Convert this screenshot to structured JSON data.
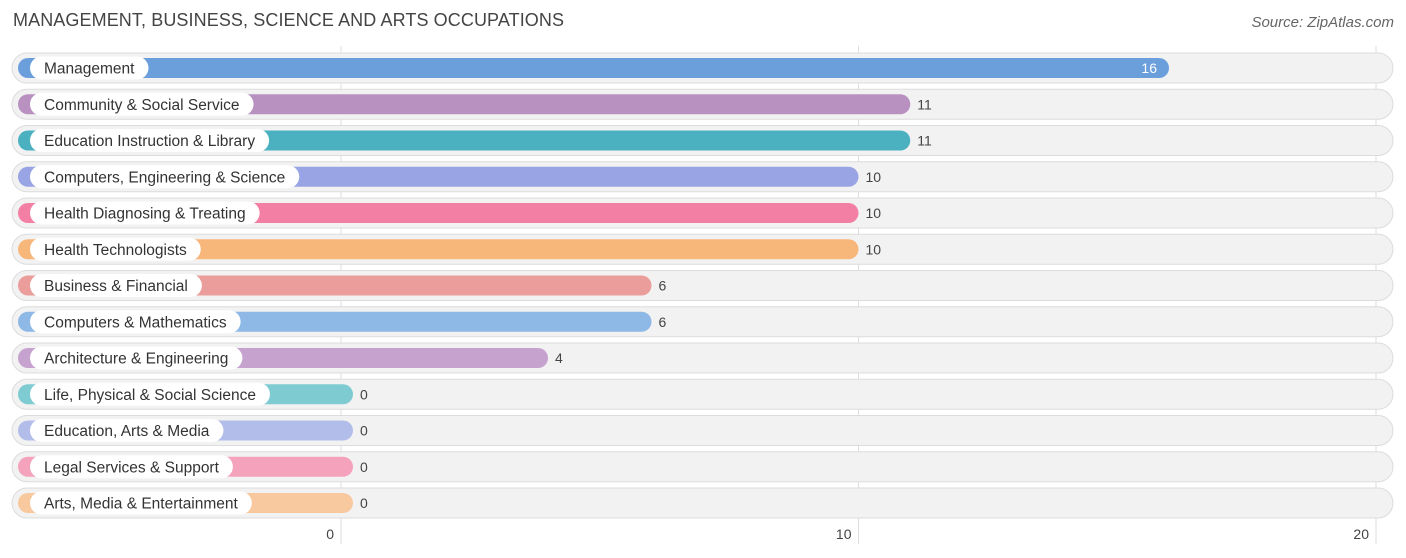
{
  "header": {
    "title": "MANAGEMENT, BUSINESS, SCIENCE AND ARTS OCCUPATIONS",
    "source": "Source: ZipAtlas.com"
  },
  "chart_data": {
    "type": "bar",
    "orientation": "horizontal",
    "title": "MANAGEMENT, BUSINESS, SCIENCE AND ARTS OCCUPATIONS",
    "categories": [
      "Management",
      "Community & Social Service",
      "Education Instruction & Library",
      "Computers, Engineering & Science",
      "Health Diagnosing & Treating",
      "Health Technologists",
      "Business & Financial",
      "Computers & Mathematics",
      "Architecture & Engineering",
      "Life, Physical & Social Science",
      "Education, Arts & Media",
      "Legal Services & Support",
      "Arts, Media & Entertainment"
    ],
    "values": [
      16,
      11,
      11,
      10,
      10,
      10,
      6,
      6,
      4,
      0,
      0,
      0,
      0
    ],
    "colors": [
      "#6a9fdc",
      "#b891c1",
      "#4bb1c1",
      "#98a4e4",
      "#f37fa4",
      "#f8b77a",
      "#eb9d9b",
      "#8eb8e6",
      "#c5a3ce",
      "#7fcbd2",
      "#b3bdea",
      "#f5a2bd",
      "#f8c99f"
    ],
    "xlim": [
      0,
      20
    ],
    "xticks": [
      "0",
      "10",
      "20"
    ],
    "grid": true,
    "legend": "none"
  }
}
